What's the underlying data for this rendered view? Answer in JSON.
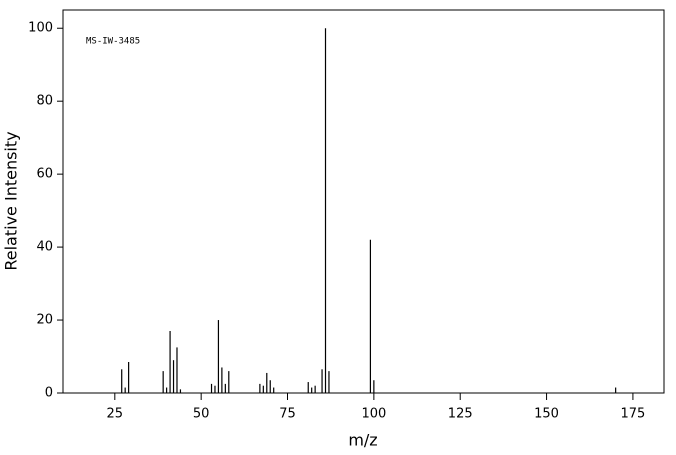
{
  "chart_data": {
    "type": "spectrum",
    "annotation": "MS-IW-3485",
    "x_label": "m/z",
    "y_label": "Relative Intensity",
    "x": [
      27,
      28,
      29,
      39,
      40,
      41,
      42,
      43,
      44,
      53,
      54,
      55,
      56,
      57,
      58,
      67,
      68,
      69,
      70,
      71,
      81,
      82,
      83,
      85,
      86,
      87,
      99,
      100,
      170
    ],
    "values": [
      6.5,
      1.5,
      8.5,
      6,
      1.5,
      17,
      9,
      12.5,
      1,
      2.5,
      2,
      20,
      7,
      2.5,
      6,
      2.5,
      2,
      5.5,
      3.5,
      1.5,
      3,
      1.5,
      2,
      6.5,
      100,
      6,
      42,
      3.5,
      1.5
    ],
    "color": "#000000",
    "xlim": [
      10,
      184
    ],
    "xticks": [
      25,
      50,
      75,
      100,
      125,
      150,
      175
    ],
    "ylim": [
      0,
      105
    ],
    "yticks": [
      0,
      20,
      40,
      60,
      80,
      100
    ]
  }
}
